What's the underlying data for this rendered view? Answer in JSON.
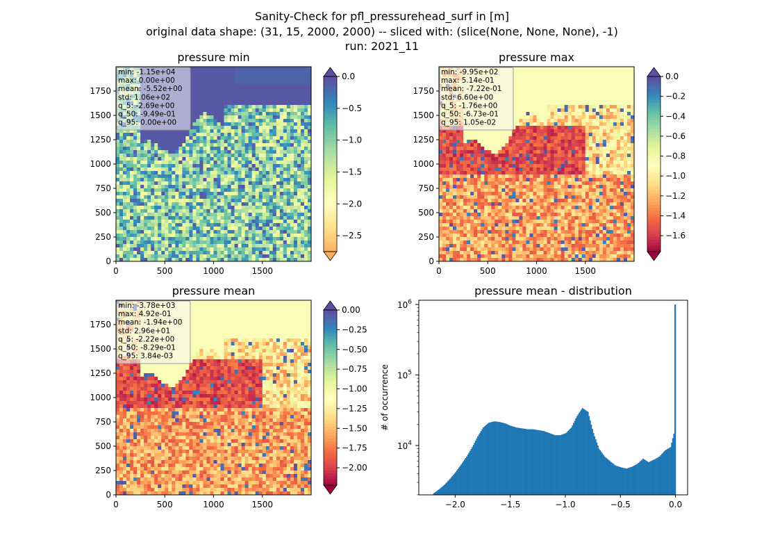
{
  "figure": {
    "suptitle_lines": [
      "Sanity-Check for pfl_pressurehead_surf in [m]",
      "original data shape: (31, 15, 2000, 2000) -- sliced with: (slice(None, None, None), -1)",
      "run: 2021_11"
    ]
  },
  "chart_data": [
    {
      "type": "heatmap",
      "title": "pressure min",
      "xlim": [
        0,
        2000
      ],
      "ylim": [
        0,
        2000
      ],
      "xticks": [
        0,
        500,
        1000,
        1500
      ],
      "yticks": [
        0,
        250,
        500,
        750,
        1000,
        1250,
        1500,
        1750
      ],
      "colormap": "Spectral",
      "colorbar": {
        "range": [
          -2.75,
          0.0
        ],
        "ticks": [
          "0.0",
          "−0.5",
          "−1.0",
          "−1.5",
          "−2.0",
          "−2.5"
        ],
        "tick_values": [
          0.0,
          -0.5,
          -1.0,
          -1.5,
          -2.0,
          -2.5
        ],
        "extend": "both"
      },
      "stats": [
        "min: -1.15e+04",
        "max: 0.00e+00",
        "mean: -5.52e+00",
        "std: 1.06e+02",
        "q_5: -2.69e+00",
        "q_50: -9.49e-01",
        "q_95: 0.00e+00"
      ]
    },
    {
      "type": "heatmap",
      "title": "pressure max",
      "xlim": [
        0,
        2000
      ],
      "ylim": [
        0,
        2000
      ],
      "xticks": [
        0,
        500,
        1000,
        1500
      ],
      "yticks": [
        0,
        250,
        500,
        750,
        1000,
        1250,
        1500,
        1750
      ],
      "colormap": "Spectral",
      "colorbar": {
        "range": [
          -1.76,
          0.0
        ],
        "ticks": [
          "0.0",
          "−0.2",
          "−0.4",
          "−0.6",
          "−0.8",
          "−1.0",
          "−1.2",
          "−1.4",
          "−1.6"
        ],
        "tick_values": [
          0.0,
          -0.2,
          -0.4,
          -0.6,
          -0.8,
          -1.0,
          -1.2,
          -1.4,
          -1.6
        ],
        "extend": "both"
      },
      "stats": [
        "min: -9.95e+02",
        "max: 5.14e-01",
        "mean: -7.22e-01",
        "std: 6.60e+00",
        "q_5: -1.76e+00",
        "q_50: -6.73e-01",
        "q_95: 1.05e-02"
      ]
    },
    {
      "type": "heatmap",
      "title": "pressure mean",
      "xlim": [
        0,
        2000
      ],
      "ylim": [
        0,
        2000
      ],
      "xticks": [
        0,
        500,
        1000,
        1500
      ],
      "yticks": [
        0,
        250,
        500,
        750,
        1000,
        1250,
        1500,
        1750
      ],
      "colormap": "Spectral",
      "colorbar": {
        "range": [
          -2.22,
          0.0
        ],
        "ticks": [
          "0.00",
          "−0.25",
          "−0.50",
          "−0.75",
          "−1.00",
          "−1.25",
          "−1.50",
          "−1.75",
          "−2.00"
        ],
        "tick_values": [
          0.0,
          -0.25,
          -0.5,
          -0.75,
          -1.0,
          -1.25,
          -1.5,
          -1.75,
          -2.0
        ],
        "extend": "both"
      },
      "stats": [
        "min: -3.78e+03",
        "max: 4.92e-01",
        "mean: -1.94e+00",
        "std: 2.96e+01",
        "q_5: -2.22e+00",
        "q_50: -8.29e-01",
        "q_95: 3.84e-03"
      ]
    },
    {
      "type": "bar",
      "title": "pressure mean - distribution",
      "ylabel": "# of occurrence",
      "yscale": "log",
      "xlim": [
        -2.33,
        0.11
      ],
      "ylim_exp": [
        3.3,
        6.06
      ],
      "xticks": [
        -2.0,
        -1.5,
        -1.0,
        -0.5,
        0.0
      ],
      "xtick_labels": [
        "−2.0",
        "−1.5",
        "−1.0",
        "−0.5",
        "0.0"
      ],
      "yticks": [
        {
          "value": 10000,
          "base": "10",
          "exp": "4"
        },
        {
          "value": 100000,
          "base": "10",
          "exp": "5"
        },
        {
          "value": 1000000,
          "base": "10",
          "exp": "6"
        }
      ],
      "bar_color": "#1f77b4",
      "bins": {
        "x": [
          -2.2,
          -2.15,
          -2.1,
          -2.05,
          -2.0,
          -1.95,
          -1.9,
          -1.85,
          -1.8,
          -1.75,
          -1.7,
          -1.65,
          -1.6,
          -1.55,
          -1.5,
          -1.45,
          -1.4,
          -1.35,
          -1.3,
          -1.25,
          -1.2,
          -1.15,
          -1.1,
          -1.05,
          -1.0,
          -0.95,
          -0.9,
          -0.85,
          -0.8,
          -0.75,
          -0.7,
          -0.65,
          -0.6,
          -0.55,
          -0.5,
          -0.45,
          -0.4,
          -0.35,
          -0.3,
          -0.25,
          -0.2,
          -0.15,
          -0.1,
          -0.05,
          -0.01,
          0.0
        ],
        "counts": [
          2100,
          2400,
          2800,
          3400,
          4200,
          5400,
          7000,
          9500,
          13500,
          18000,
          21000,
          22000,
          21500,
          20500,
          19000,
          18000,
          17500,
          17000,
          17000,
          16500,
          16000,
          15000,
          14000,
          14000,
          15000,
          18000,
          26000,
          34000,
          30000,
          15000,
          9000,
          7000,
          6000,
          5200,
          4900,
          4700,
          5000,
          5500,
          6500,
          5800,
          6300,
          7000,
          8500,
          9500,
          17000,
          1000000
        ]
      }
    }
  ]
}
